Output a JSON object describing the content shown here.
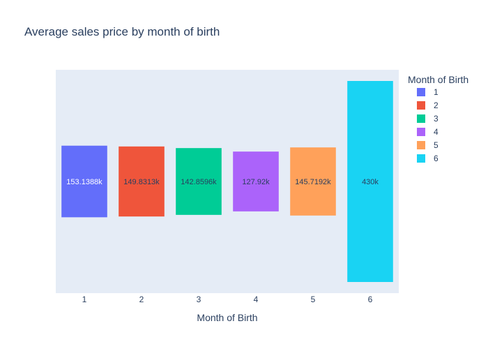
{
  "chart_data": {
    "type": "bar",
    "title": "Average sales price by month of birth",
    "xlabel": "Month of Birth",
    "ylabel": "",
    "categories": [
      "1",
      "2",
      "3",
      "4",
      "5",
      "6"
    ],
    "values": [
      "153.1388k",
      "149.8313k",
      "142.8596k",
      "127.92k",
      "145.7192k",
      "430k"
    ],
    "bar_labels": [
      "153.1388k",
      "149.8313k",
      "142.8596k",
      "127.92k",
      "145.7192k",
      "430k"
    ],
    "grid": false,
    "legend": {
      "title": "Month of Birth",
      "placement": "right",
      "entries": [
        "1",
        "2",
        "3",
        "4",
        "5",
        "6"
      ]
    },
    "colors": [
      "#636efa",
      "#ef553b",
      "#00cc96",
      "#ab63fa",
      "#ffa15a",
      "#19d3f3"
    ],
    "label_colors": [
      "#ffffff",
      "#2a3f5f",
      "#2a3f5f",
      "#2a3f5f",
      "#2a3f5f",
      "#2a3f5f"
    ],
    "plot_background": "#e5ecf6",
    "text_color": "#2a3f5f"
  }
}
